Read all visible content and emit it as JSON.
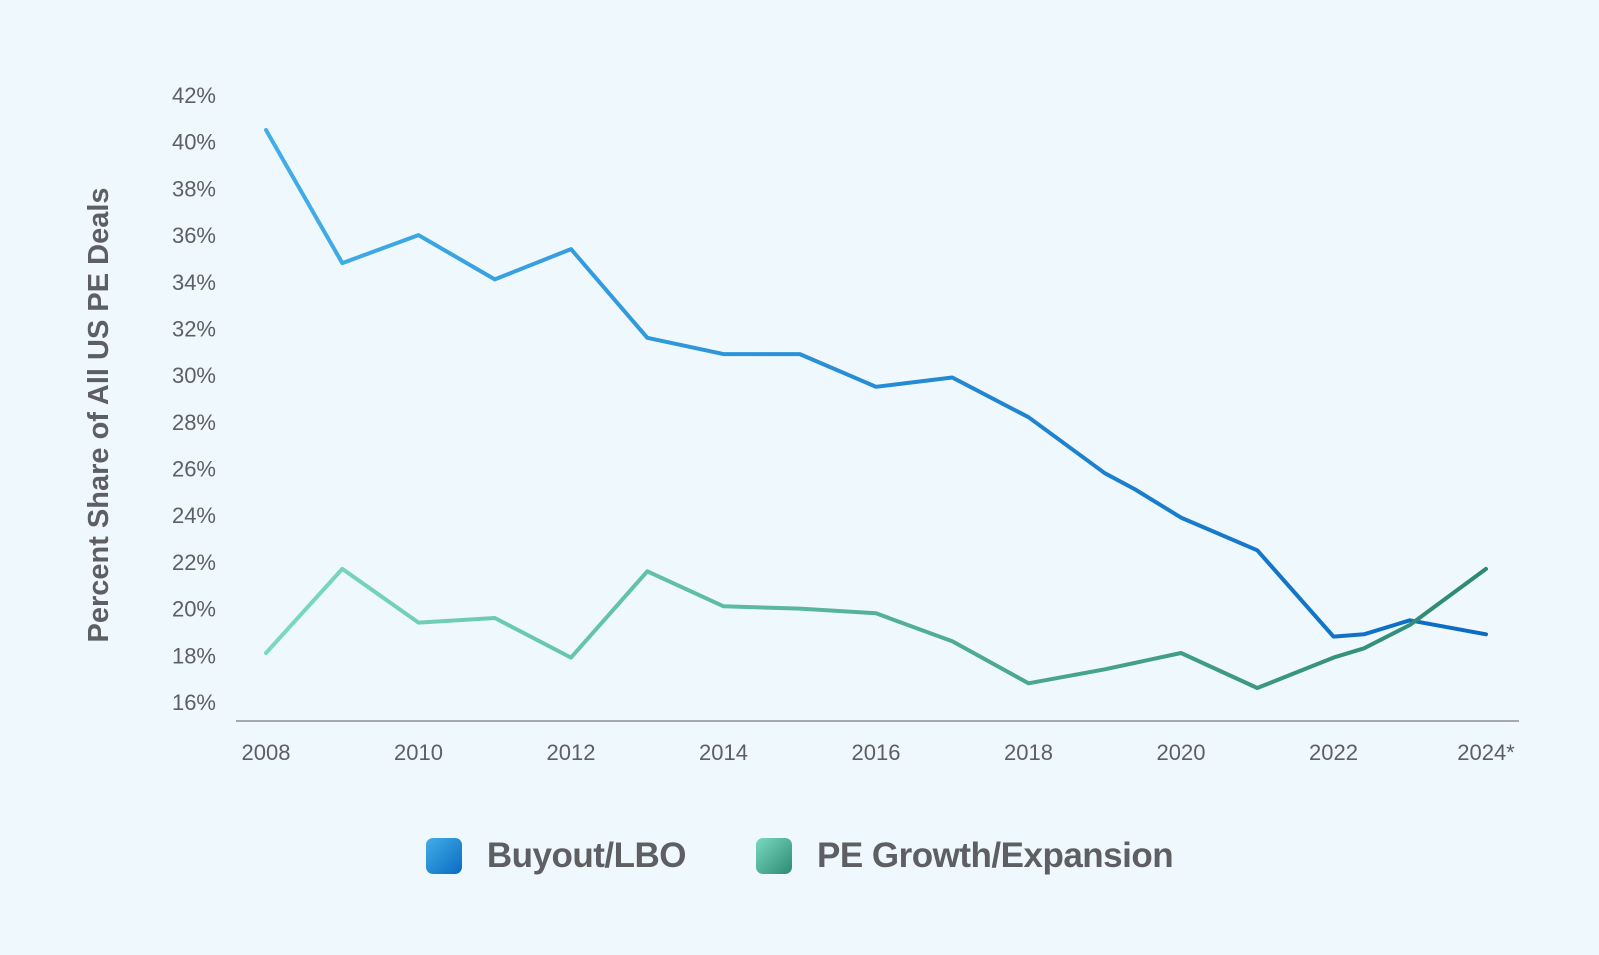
{
  "chart_data": {
    "type": "line",
    "ylabel": "Percent Share of All US PE Deals",
    "xlabel": "",
    "ylim": [
      16,
      42
    ],
    "y_ticks": [
      "16%",
      "18%",
      "20%",
      "22%",
      "24%",
      "26%",
      "28%",
      "30%",
      "32%",
      "34%",
      "36%",
      "38%",
      "40%",
      "42%"
    ],
    "x_ticks": [
      "2008",
      "2010",
      "2012",
      "2014",
      "2016",
      "2018",
      "2020",
      "2022",
      "2024*"
    ],
    "x_tick_values": [
      2008,
      2010,
      2012,
      2014,
      2016,
      2018,
      2020,
      2022,
      2024
    ],
    "grid": false,
    "legend_position": "bottom-center",
    "series": [
      {
        "name": "Buyout/LBO",
        "colors": [
          "#42aee8",
          "#0a6bc2"
        ],
        "x": [
          2008,
          2009,
          2010,
          2011,
          2012,
          2013,
          2014,
          2015,
          2016,
          2017,
          2018,
          2019,
          2019.4,
          2020,
          2021,
          2022,
          2022.4,
          2023,
          2024
        ],
        "values": [
          40.5,
          34.8,
          36.0,
          34.1,
          35.4,
          31.6,
          30.9,
          30.9,
          29.5,
          29.9,
          28.2,
          25.8,
          25.1,
          23.9,
          22.5,
          18.8,
          18.9,
          19.5,
          18.9
        ]
      },
      {
        "name": "PE Growth/Expansion",
        "colors": [
          "#7ad9c2",
          "#2c8a70"
        ],
        "x": [
          2008,
          2009,
          2010,
          2011,
          2012,
          2013,
          2014,
          2015,
          2016,
          2017,
          2018,
          2019,
          2020,
          2021,
          2022,
          2022.4,
          2023,
          2024
        ],
        "values": [
          18.1,
          21.7,
          19.4,
          19.6,
          17.9,
          21.6,
          20.1,
          20.0,
          19.8,
          18.6,
          16.8,
          17.4,
          18.1,
          16.6,
          17.9,
          18.3,
          19.3,
          21.7
        ]
      }
    ]
  }
}
